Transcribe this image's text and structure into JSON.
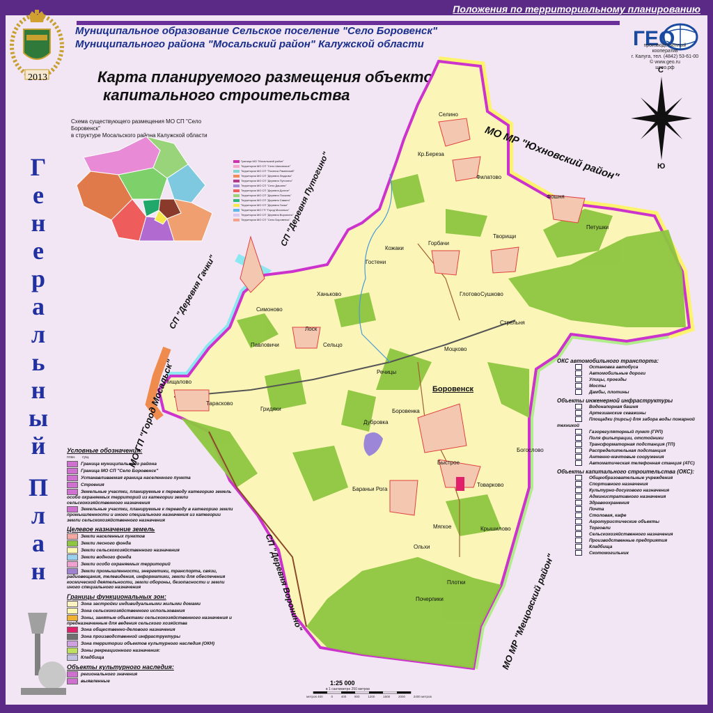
{
  "header": {
    "planning_link": "Положения по территориальному планированию"
  },
  "municipality": {
    "line1": "Муниципальное образование Сельское поселение \"Село Боровенск\"",
    "line2": "Муниципального района \"Мосальский район\" Калужской области"
  },
  "map_title": {
    "line1": "Карта планируемого размещения объектов",
    "line2": "капитального строительства"
  },
  "crest": {
    "year": "2013"
  },
  "organization": {
    "logo_text": "ГЕО",
    "line1": "производственный кооператив",
    "line2": "г. Калуга, тел. (4842) 53-61-00",
    "line3": "© www.geo.ru",
    "line4": "шгео.рф"
  },
  "scheme": {
    "caption_line1": "Схема существующего размещения МО СП \"Село Боровенск\"",
    "caption_line2": "в структуре Мосальского района Калужской области",
    "legend": [
      {
        "label": "Граница МО \"Мосальский район\"",
        "color": "#cc33aa"
      },
      {
        "label": "Территория МО СП \"Село Шаховское\"",
        "color": "#f4a6c8"
      },
      {
        "label": "Территория МО СП \"Поселок Раменский\"",
        "color": "#7ed6d0"
      },
      {
        "label": "Территория МО СП \"Деревня Людково\"",
        "color": "#f08a5a"
      },
      {
        "label": "Территория МО СП \"Деревня Путогино\"",
        "color": "#b03a8a"
      },
      {
        "label": "Территория МО СП \"Село Дашино\"",
        "color": "#a28ad6"
      },
      {
        "label": "Территория МО СП \"Деревня Долгое\"",
        "color": "#ef5c5c"
      },
      {
        "label": "Территория МО СП \"Деревня Посконь\"",
        "color": "#9ad47a"
      },
      {
        "label": "Территория МО СП \"Деревня Савино\"",
        "color": "#2bb87a"
      },
      {
        "label": "Территория МО СП \"Деревня Гачки\"",
        "color": "#f6e84a"
      },
      {
        "label": "Территория МО ГП \"Город Мосальск\"",
        "color": "#5ab8e8"
      },
      {
        "label": "Территория МО СП \"Деревня Воронино\"",
        "color": "#d6c8f0"
      },
      {
        "label": "Территория МО СП \"Село Боровенск\"",
        "color": "#f4a08a"
      }
    ]
  },
  "vertical_title": {
    "word1": [
      "Г",
      "е",
      "н",
      "е",
      "р",
      "а",
      "л",
      "ь",
      "н",
      "ы",
      "й"
    ],
    "word2": [
      "П",
      "л",
      "а",
      "н"
    ]
  },
  "neighbors": {
    "yukhnov": "МО МР \"Юхновский район\"",
    "putogino": "СП \"Деревня Путогино\"",
    "gachki": "СП \"Деревня Гачки\"",
    "mosalsk": "МО ГП \"Город Мосальск\"",
    "voronino": "СП \"Деревня Воронино\"",
    "meshchovsk": "МО МР \"Мещовский район\""
  },
  "villages": [
    "Селино",
    "Кр.Береза",
    "Филатово",
    "Фошня",
    "Петушки",
    "Творищи",
    "Горбачи",
    "Кожаки",
    "Гостени",
    "Глотово",
    "Сушково",
    "Ханьково",
    "Симоново",
    "Лоск",
    "Стрельня",
    "Павловичи",
    "Сельцо",
    "Моцково",
    "Речицы",
    "Боровенск",
    "Пищалово",
    "Тарасково",
    "Гридяки",
    "Боровенка",
    "Дубровка",
    "Богослово",
    "Быстрое",
    "Товарково",
    "Бараньи Рога",
    "Мягкое",
    "Крышилово",
    "Ольхи",
    "Плотки",
    "Почерпики"
  ],
  "compass": {
    "north": "С",
    "south": "Ю"
  },
  "legend_left": {
    "title": "Условные обозначения:",
    "col_plan": "план.",
    "col_exist": "сущ.",
    "boundaries": [
      "Граница муниципального района",
      "Граница МО СП \"Село Боровенск\"",
      "Устанавливаемая граница населенного пункта",
      "Строения",
      "Земельные участки, планируемые к переводу категорию земель особо охраняемых территорий из категории земли сельскохозяйственного назначения",
      "Земельные участки, планируемые к переводу в категорию земли промышленности и иного специального назначения из категории земли сельскохозяйственного назначения"
    ],
    "land_title": "Целевое назначение земель",
    "land": [
      {
        "label": "Земли населенных пунктов",
        "color": "#f4a6a0"
      },
      {
        "label": "Земли лесного фонда",
        "color": "#8dc63f"
      },
      {
        "label": "Земли сельскохозяйственного назначения",
        "color": "#fff8b0"
      },
      {
        "label": "Земли водного фонда",
        "color": "#9ad0f0"
      },
      {
        "label": "Земли особо охраняемых территорий",
        "color": "#f0a0d0"
      },
      {
        "label": "Земли промышленности, энергетики, транспорта, связи, радиовещания, телевидения, информатики, земли для обеспечения космической деятельности, земли обороны, безопасности и земли иного специального назначения",
        "color": "#a080d0"
      }
    ],
    "zones_title": "Границы функциональных зон:",
    "zones": [
      {
        "label": "Зона застройки индивидуальными жилыми домами",
        "color": "#fff2c0"
      },
      {
        "label": "Зона сельскохозяйственного использования",
        "color": "#fff8b0"
      },
      {
        "label": "Зоны, занятые объектами сельскохозяйственного назначения и предназначенные для ведения сельского хозяйства",
        "color": "#f0b030"
      },
      {
        "label": "Зона общественно-делового назначения",
        "color": "#e0206a"
      },
      {
        "label": "Зона производственной инфраструктуры",
        "color": "#707070"
      },
      {
        "label": "Зона территории объектов культурного наследия (ОКН)",
        "color": "#d0a0e0"
      },
      {
        "label": "Зоны рекреационного назначения:",
        "color": "#c0e060"
      },
      {
        "label": "Кладбища",
        "color": "#c0c0e0"
      }
    ],
    "heritage_title": "Объекты культурного наследия:",
    "heritage": [
      "регионального значения",
      "выявленные"
    ]
  },
  "legend_right": {
    "transport_title": "ОКС автомобильного транспорта:",
    "transport": [
      "Остановка автобуса",
      "Автомобильные дороги",
      "Улицы, проезды",
      "Мосты",
      "Дамбы, плотины"
    ],
    "engineering_title": "Объекты инженерной инфраструктуры",
    "engineering": [
      "Водонапорная башня",
      "Артезианские скважины",
      "Площадки (пирсы) для забора воды пожарной техникой",
      "Газорегуляторный пункт (ГРП)",
      "Поля фильтрации, отстойники",
      "Трансформаторная подстанция (ТП)",
      "Распределительная подстанция",
      "Антенно-мачтовые сооружения",
      "Автоматическая телефонная станция (АТС)"
    ],
    "capital_title": "Объекты капитального строительства (ОКС):",
    "capital": [
      "Общеобразовательные учреждения",
      "Спортивного назначения",
      "Культурно-досугового назначения",
      "Административного назначения",
      "Здравоохранения",
      "Почта",
      "Столовая, кафе",
      "Агротуристические объекты",
      "Торговли",
      "Сельскохозяйственного назначения",
      "Производственные предприятия",
      "Кладбища",
      "Скотомогильник"
    ]
  },
  "scale": {
    "ratio": "1:25 000",
    "note": "в 1 сантиметре 250 метров",
    "ticks": [
      "метров 400",
      "0",
      "400",
      "800",
      "1200",
      "1600",
      "2000",
      "2400 метров"
    ]
  },
  "colors": {
    "frame": "#5b2a86",
    "title_blue": "#1a2f8c",
    "forest": "#8dc63f",
    "agri": "#fff8b0",
    "boundary_magenta": "#cc33cc"
  }
}
